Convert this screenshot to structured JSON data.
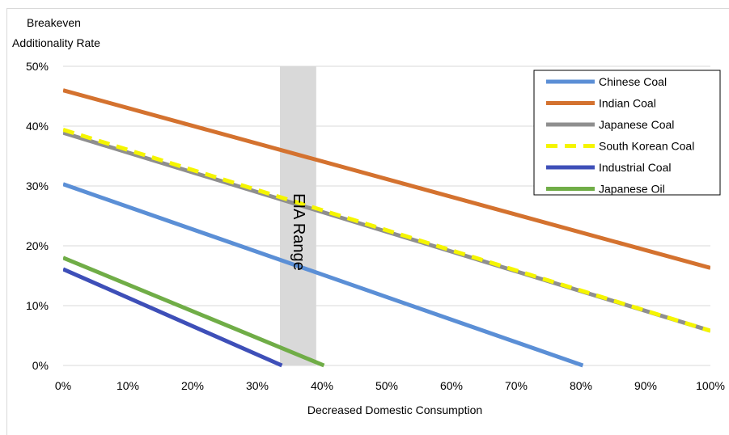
{
  "chart_data": {
    "type": "line",
    "ylabel_lines": [
      "Breakeven",
      "Additionality Rate"
    ],
    "xlabel": "Decreased Domestic Consumption",
    "xlim": [
      0,
      100
    ],
    "ylim": [
      0,
      50
    ],
    "x_ticks": [
      0,
      10,
      20,
      30,
      40,
      50,
      60,
      70,
      80,
      90,
      100
    ],
    "x_tick_labels": [
      "0%",
      "10%",
      "20%",
      "30%",
      "40%",
      "50%",
      "60%",
      "70%",
      "80%",
      "90%",
      "100%"
    ],
    "y_ticks": [
      0,
      10,
      20,
      30,
      40,
      50
    ],
    "y_tick_labels": [
      "0%",
      "10%",
      "20%",
      "30%",
      "40%",
      "50%"
    ],
    "grid": true,
    "legend_position": "top-right",
    "band": {
      "label": "EIA Range",
      "x_start": 33.5,
      "x_end": 39.1
    },
    "series": [
      {
        "name": "Chinese Coal",
        "color": "#5b8fd6",
        "dash": false,
        "x": [
          0,
          80.3
        ],
        "y": [
          30.3,
          0
        ]
      },
      {
        "name": "Indian Coal",
        "color": "#d4722f",
        "dash": false,
        "x": [
          0,
          100
        ],
        "y": [
          46.0,
          16.3
        ]
      },
      {
        "name": "Japanese Coal",
        "color": "#8f8f8f",
        "dash": false,
        "x": [
          0,
          100
        ],
        "y": [
          38.9,
          5.8
        ]
      },
      {
        "name": "South Korean Coal",
        "color": "#f5f500",
        "dash": true,
        "x": [
          0,
          100
        ],
        "y": [
          39.4,
          5.8
        ]
      },
      {
        "name": "Industrial Coal",
        "color": "#3e4fb8",
        "dash": false,
        "x": [
          0,
          33.8
        ],
        "y": [
          16.1,
          0
        ]
      },
      {
        "name": "Japanese Oil",
        "color": "#70ad47",
        "dash": false,
        "x": [
          0,
          40.3
        ],
        "y": [
          18.0,
          0
        ]
      }
    ]
  }
}
